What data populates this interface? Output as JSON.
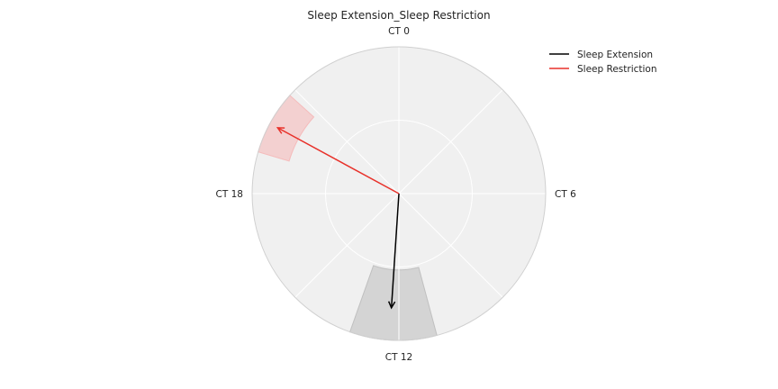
{
  "chart_data": {
    "type": "polar",
    "title": "Sleep Extension_Sleep Restriction",
    "angular_unit": "circadian time (hours)",
    "angular_period": 24,
    "direction": "clockwise",
    "zero_location": "top",
    "tick_labels": [
      "CT 0",
      "CT 6",
      "CT 12",
      "CT 18"
    ],
    "tick_values": [
      0,
      6,
      12,
      18
    ],
    "radial_range": [
      0,
      1
    ],
    "radial_gridlines": [
      0.5
    ],
    "angular_gridline_hours": [
      0,
      3,
      6,
      9,
      12,
      15,
      18,
      21
    ],
    "legend_position": "top-right",
    "series": [
      {
        "name": "Sleep Extension",
        "color": "#000000",
        "mean_vector": {
          "phase_ct": 12.25,
          "length": 0.78
        },
        "confidence_arc": {
          "start_ct": 11.0,
          "end_ct": 13.3,
          "r_inner": 0.52,
          "r_outer": 1.0,
          "color": "#bdbdbd"
        }
      },
      {
        "name": "Sleep Restriction",
        "color": "#e8312a",
        "mean_vector": {
          "phase_ct": 19.9,
          "length": 0.94
        },
        "confidence_arc": {
          "start_ct": 19.1,
          "end_ct": 20.8,
          "r_inner": 0.78,
          "r_outer": 1.0,
          "color": "#f5b7b7"
        }
      }
    ]
  }
}
